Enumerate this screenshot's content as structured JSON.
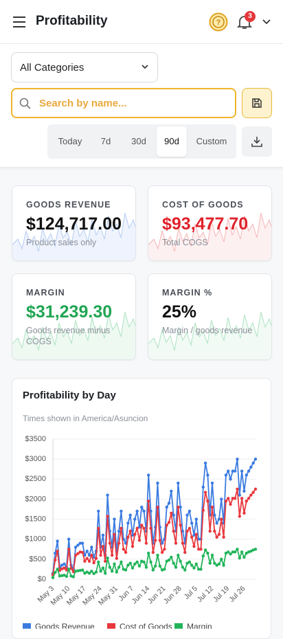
{
  "header": {
    "title": "Profitability",
    "notification_count": 3
  },
  "filters": {
    "category": "All Categories",
    "search_placeholder": "Search by name...",
    "ranges": [
      "Today",
      "7d",
      "30d",
      "90d",
      "Custom"
    ]
  },
  "cards": [
    {
      "label": "GOODS REVENUE",
      "value": "$124,717.00",
      "caption": "Product sales only"
    },
    {
      "label": "COST OF GOODS",
      "value": "$93,477.70",
      "caption": "Total COGS"
    },
    {
      "label": "MARGIN",
      "value": "$31,239.30",
      "caption": "Goods revenue minus COGS"
    },
    {
      "label": "MARGIN %",
      "value": "25%",
      "caption": "Margin / goods revenue"
    }
  ],
  "chart_data": {
    "type": "line",
    "title": "Profitability by Day",
    "subtitle": "Times shown in America/Asuncion",
    "categories": [
      "May 3",
      null,
      null,
      null,
      null,
      null,
      null,
      "May 10",
      null,
      null,
      null,
      null,
      null,
      null,
      "May 17",
      null,
      null,
      null,
      null,
      null,
      null,
      "May 24",
      null,
      null,
      null,
      null,
      null,
      null,
      "May 31",
      null,
      null,
      null,
      null,
      null,
      null,
      "Jun 7",
      null,
      null,
      null,
      null,
      null,
      null,
      "Jun 14",
      null,
      null,
      null,
      null,
      null,
      null,
      "Jun 21",
      null,
      null,
      null,
      null,
      null,
      null,
      "Jun 28",
      null,
      null,
      null,
      null,
      null,
      null,
      "Jul 5",
      null,
      null,
      null,
      null,
      null,
      null,
      "Jul 12",
      null,
      null,
      null,
      null,
      null,
      null,
      "Jul 19",
      null,
      null,
      null,
      null,
      null,
      null,
      "Jul 26",
      null,
      null,
      null,
      null,
      null
    ],
    "series": [
      {
        "name": "Goods Revenue",
        "color": "#3b7be0",
        "values": [
          150,
          650,
          950,
          300,
          350,
          380,
          300,
          1000,
          350,
          250,
          800,
          850,
          900,
          900,
          600,
          700,
          600,
          800,
          550,
          700,
          1700,
          800,
          1100,
          600,
          2100,
          1200,
          800,
          1500,
          700,
          1200,
          1700,
          1000,
          900,
          1400,
          1600,
          1100,
          1500,
          1700,
          1300,
          1800,
          1700,
          1200,
          2600,
          1700,
          900,
          1300,
          2400,
          1300,
          900,
          1000,
          1800,
          1900,
          2200,
          1600,
          1200,
          2400,
          1800,
          1200,
          900,
          1600,
          1700,
          1400,
          1100,
          1500,
          1000,
          1000,
          2300,
          2900,
          2600,
          1600,
          2400,
          1600,
          1400,
          1500,
          2000,
          1400,
          2600,
          2700,
          2500,
          2700,
          2700,
          3000,
          2100,
          2700,
          2200,
          2600,
          2700,
          2800,
          2900,
          3000
        ]
      },
      {
        "name": "Cost of Goods",
        "color": "#e8383d",
        "values": [
          110,
          480,
          700,
          220,
          260,
          280,
          230,
          750,
          270,
          190,
          600,
          640,
          680,
          670,
          450,
          520,
          450,
          600,
          410,
          520,
          1270,
          600,
          820,
          450,
          1570,
          900,
          600,
          1120,
          520,
          900,
          1270,
          750,
          670,
          1050,
          1200,
          820,
          1120,
          1270,
          970,
          1350,
          1270,
          900,
          1950,
          1270,
          670,
          970,
          1800,
          970,
          670,
          750,
          1350,
          1420,
          1650,
          1200,
          900,
          1800,
          1350,
          900,
          670,
          1200,
          1270,
          1050,
          820,
          1120,
          750,
          750,
          1720,
          2170,
          1950,
          1200,
          1800,
          1200,
          1050,
          1120,
          1500,
          1050,
          1950,
          2020,
          1870,
          2020,
          2020,
          2250,
          1570,
          2020,
          1650,
          1950,
          2020,
          2100,
          2170,
          2250
        ]
      },
      {
        "name": "Margin",
        "color": "#22b45a",
        "values": [
          40,
          170,
          250,
          80,
          90,
          100,
          70,
          250,
          80,
          60,
          200,
          210,
          220,
          230,
          150,
          180,
          150,
          200,
          140,
          180,
          430,
          200,
          280,
          150,
          530,
          300,
          200,
          380,
          180,
          300,
          430,
          250,
          230,
          350,
          400,
          280,
          380,
          430,
          330,
          450,
          430,
          300,
          650,
          430,
          230,
          330,
          600,
          330,
          230,
          250,
          450,
          480,
          550,
          400,
          300,
          600,
          450,
          300,
          230,
          400,
          430,
          350,
          280,
          380,
          250,
          250,
          580,
          730,
          650,
          400,
          600,
          400,
          350,
          380,
          500,
          350,
          650,
          680,
          630,
          680,
          680,
          750,
          530,
          680,
          550,
          650,
          680,
          700,
          730,
          750
        ]
      }
    ],
    "ylim": [
      0,
      3500
    ],
    "yticks": [
      {
        "value": 0,
        "label": "$0"
      },
      {
        "value": 500,
        "label": "$500"
      },
      {
        "value": 1000,
        "label": "$1000"
      },
      {
        "value": 1500,
        "label": "$1500"
      },
      {
        "value": 2000,
        "label": "$2000"
      },
      {
        "value": 2500,
        "label": "$2500"
      },
      {
        "value": 3000,
        "label": "$3000"
      },
      {
        "value": 3500,
        "label": "$3500"
      }
    ],
    "grid": true,
    "legend": "bottom"
  }
}
